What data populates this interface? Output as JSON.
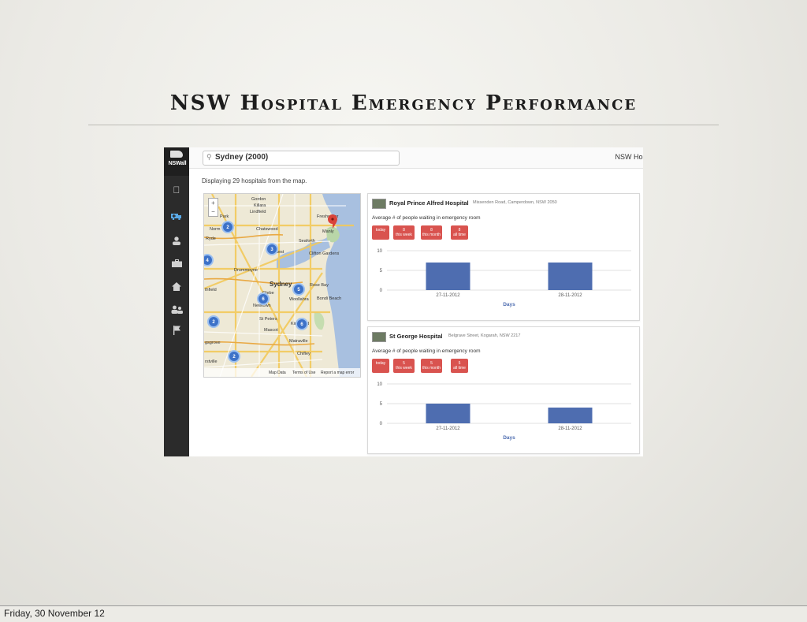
{
  "slide": {
    "title": "NSW Hospital Emergency Performance",
    "footer_date": "Friday, 30 November 12"
  },
  "app": {
    "logo_text": "NSWall",
    "brand": "NSW Hos",
    "search": {
      "value": "Sydney (2000)",
      "icon": "search-icon"
    },
    "status_text": "Displaying 29 hospitals from the map.",
    "sidebar_icons": [
      "apple-icon",
      "ambulance-icon",
      "person-icon",
      "briefcase-icon",
      "home-icon",
      "people-icon",
      "flag-icon"
    ],
    "map": {
      "zoom_in": "+",
      "zoom_out": "−",
      "footer": {
        "map_data": "Map Data",
        "terms": "Terms of Use",
        "report": "Report a map error"
      },
      "places": [
        "Gordon",
        "Killara",
        "Lindfield",
        "Norm",
        "Ryde",
        "Chatswood",
        "Freshwater",
        "Manly",
        "Seaforth",
        "Nest",
        "Clifton Gardens",
        "Drummoyne",
        "Sydney",
        "Rose Bay",
        "Glebe",
        "Woollahra",
        "Bondi Beach",
        "Newtown",
        "thfield",
        "St Peters",
        "Kingsford",
        "Mascot",
        "Matraville",
        "Chifley",
        "gsgrove",
        "rstville",
        "Park"
      ],
      "clusters": [
        {
          "label": "2"
        },
        {
          "label": "3"
        },
        {
          "label": "4"
        },
        {
          "label": "6"
        },
        {
          "label": "5"
        },
        {
          "label": "2"
        },
        {
          "label": "6"
        },
        {
          "label": "2"
        }
      ]
    },
    "metric_label": "Average # of people waiting in emergency room",
    "x_axis_title": "Days",
    "hospitals": [
      {
        "name": "Royal Prince Alfred Hospital",
        "address": "Missenden Road, Camperdown, NSW 2050",
        "badges": [
          {
            "value": "",
            "label": "today"
          },
          {
            "value": "8",
            "label": "this week"
          },
          {
            "value": "8",
            "label": "this month"
          },
          {
            "value": "8",
            "label": "all time"
          }
        ]
      },
      {
        "name": "St George Hospital",
        "address": "Belgrave Street, Kogarah, NSW 2217",
        "badges": [
          {
            "value": "",
            "label": "today"
          },
          {
            "value": "5",
            "label": "this week"
          },
          {
            "value": "5",
            "label": "this month"
          },
          {
            "value": "5",
            "label": "all time"
          }
        ]
      }
    ]
  },
  "chart_data": [
    {
      "type": "bar",
      "categories": [
        "27-11-2012",
        "28-11-2012"
      ],
      "values": [
        7,
        7
      ],
      "xlabel": "Days",
      "ylabel": "",
      "ylim": [
        0,
        10
      ],
      "yticks": [
        0,
        5,
        10
      ],
      "grid": true,
      "bar_color": "#4e6db0"
    },
    {
      "type": "bar",
      "categories": [
        "27-11-2012",
        "28-11-2012"
      ],
      "values": [
        5,
        4
      ],
      "xlabel": "Days",
      "ylabel": "",
      "ylim": [
        0,
        10
      ],
      "yticks": [
        0,
        5,
        10
      ],
      "grid": true,
      "bar_color": "#4e6db0"
    }
  ]
}
